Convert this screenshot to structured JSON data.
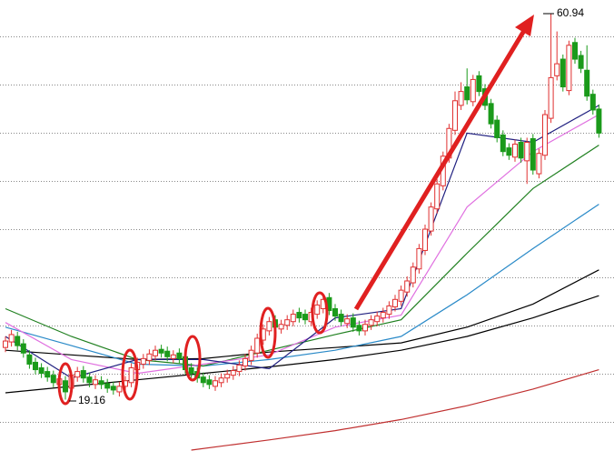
{
  "chart_data": {
    "type": "candlestick",
    "ylim": [
      13.6,
      62.4
    ],
    "up_color": "#e03030",
    "down_color": "#1a9a1a",
    "open": [
      24.8,
      25.4,
      26.0,
      25.2,
      24.0,
      23.2,
      22.6,
      22.2,
      21.8,
      20.8,
      21.2,
      20.4,
      21.6,
      22.3,
      21.6,
      20.8,
      21.2,
      20.9,
      20.6,
      20.0,
      20.6,
      21.0,
      22.4,
      23.0,
      23.4,
      23.9,
      24.6,
      24.4,
      23.6,
      24.2,
      23.8,
      22.6,
      22.2,
      21.6,
      21.3,
      20.6,
      21.0,
      21.5,
      21.8,
      22.2,
      22.8,
      23.4,
      24.2,
      25.6,
      26.6,
      27.8,
      26.8,
      27.2,
      27.6,
      28.6,
      28.4,
      27.6,
      28.4,
      29.0,
      30.2,
      29.0,
      28.4,
      27.4,
      28.0,
      27.2,
      26.6,
      27.2,
      27.6,
      28.0,
      28.4,
      29.2,
      29.8,
      30.8,
      31.8,
      33.3,
      35.3,
      37.4,
      39.8,
      42.3,
      45.3,
      48.3,
      51.0,
      53.0,
      51.4,
      54.2,
      52.8,
      51.2,
      49.4,
      47.8,
      46.4,
      45.4,
      47.0,
      45.0,
      47.4,
      43.6,
      45.6,
      49.6,
      54.2,
      56.0,
      52.6,
      57.8,
      56.4,
      54.8,
      52.2,
      50.6
    ],
    "close": [
      25.5,
      26.2,
      25.0,
      24.2,
      23.0,
      22.4,
      22.0,
      21.6,
      21.0,
      21.4,
      20.0,
      21.8,
      22.2,
      21.5,
      21.0,
      21.3,
      20.8,
      20.4,
      20.2,
      20.6,
      21.2,
      22.6,
      23.2,
      23.6,
      24.1,
      24.5,
      24.2,
      23.8,
      24.0,
      23.6,
      22.4,
      22.0,
      21.5,
      21.0,
      20.8,
      21.2,
      21.5,
      21.9,
      22.3,
      22.9,
      23.6,
      24.5,
      25.8,
      26.8,
      27.6,
      27.0,
      27.3,
      27.8,
      28.4,
      28.0,
      27.8,
      28.6,
      29.4,
      30.0,
      28.8,
      28.2,
      27.6,
      27.9,
      27.0,
      26.6,
      27.3,
      27.8,
      28.2,
      28.6,
      29.3,
      30.0,
      31.0,
      32.0,
      33.5,
      35.5,
      37.6,
      40.0,
      42.5,
      45.5,
      48.5,
      51.5,
      52.5,
      51.6,
      53.8,
      52.5,
      51.0,
      49.0,
      47.5,
      46.0,
      45.6,
      46.8,
      45.3,
      47.0,
      44.0,
      45.8,
      50.0,
      54.0,
      55.5,
      53.0,
      57.5,
      56.0,
      55.0,
      52.0,
      50.5,
      48.0
    ],
    "high": [
      26.0,
      26.7,
      26.5,
      25.7,
      24.5,
      23.7,
      23.1,
      22.7,
      22.3,
      21.9,
      21.7,
      22.3,
      22.7,
      22.8,
      22.1,
      21.8,
      21.7,
      21.4,
      21.1,
      21.1,
      21.7,
      23.1,
      23.7,
      24.1,
      24.6,
      25.0,
      25.1,
      24.9,
      24.5,
      24.7,
      24.3,
      23.1,
      22.7,
      22.1,
      21.8,
      21.7,
      22.0,
      22.4,
      22.8,
      23.4,
      24.1,
      25.0,
      26.3,
      27.3,
      28.1,
      28.3,
      27.8,
      28.3,
      28.9,
      29.1,
      28.9,
      29.1,
      29.9,
      30.5,
      30.7,
      29.5,
      28.9,
      28.4,
      28.5,
      27.7,
      27.8,
      28.3,
      28.7,
      29.1,
      29.8,
      30.5,
      31.5,
      32.5,
      34.0,
      36.0,
      38.1,
      40.5,
      43.0,
      46.0,
      49.0,
      52.5,
      53.5,
      55.0,
      54.3,
      54.7,
      53.3,
      51.7,
      49.9,
      48.3,
      46.9,
      47.3,
      47.5,
      47.5,
      47.9,
      46.3,
      50.5,
      60.94,
      59.0,
      56.5,
      58.0,
      58.3,
      56.9,
      57.5,
      52.7,
      51.1
    ],
    "low": [
      24.3,
      24.9,
      24.5,
      23.7,
      22.5,
      21.9,
      21.5,
      21.1,
      20.5,
      20.3,
      19.16,
      19.9,
      21.1,
      21.0,
      20.5,
      20.3,
      20.3,
      19.9,
      19.7,
      19.5,
      20.1,
      20.5,
      21.9,
      22.5,
      22.9,
      23.4,
      23.7,
      23.3,
      23.1,
      23.1,
      21.9,
      21.5,
      21.0,
      20.5,
      20.3,
      20.1,
      20.5,
      21.0,
      21.3,
      21.7,
      22.3,
      22.9,
      23.7,
      25.1,
      26.1,
      26.5,
      26.3,
      26.7,
      27.1,
      27.5,
      27.3,
      27.1,
      27.9,
      28.5,
      28.3,
      27.7,
      27.1,
      26.9,
      26.5,
      26.1,
      26.1,
      26.7,
      27.1,
      27.5,
      27.9,
      28.7,
      29.3,
      30.3,
      31.3,
      32.8,
      34.8,
      36.9,
      39.3,
      41.8,
      44.8,
      47.8,
      50.5,
      51.1,
      50.9,
      52.0,
      50.5,
      48.5,
      47.0,
      45.5,
      45.1,
      44.9,
      44.8,
      42.5,
      43.5,
      43.1,
      45.1,
      49.1,
      53.7,
      52.5,
      52.1,
      55.5,
      54.5,
      51.5,
      50.0,
      47.5
    ],
    "lines": [
      {
        "color": "#000000",
        "x": [
          0,
          11,
          22,
          33,
          44,
          55,
          66,
          77,
          88,
          99
        ],
        "values": [
          19.9,
          20.6,
          21.3,
          22.0,
          22.7,
          23.5,
          24.5,
          26.0,
          28.0,
          30.4
        ]
      },
      {
        "color": "#000000",
        "x": [
          0,
          11,
          22,
          33,
          44,
          55,
          66,
          77,
          88,
          99
        ],
        "values": [
          24.5,
          24.0,
          23.5,
          23.6,
          24.3,
          24.8,
          25.3,
          27.0,
          29.5,
          33.2
        ]
      },
      {
        "color": "#c03030",
        "x": [
          31,
          44,
          55,
          66,
          77,
          88,
          99
        ],
        "values": [
          13.7,
          14.8,
          15.8,
          17.0,
          18.5,
          20.3,
          22.4
        ]
      },
      {
        "color": "#2a8ac8",
        "x": [
          0,
          11,
          22,
          33,
          44,
          55,
          66,
          77,
          88,
          99
        ],
        "values": [
          27.0,
          25.0,
          23.0,
          22.8,
          23.5,
          24.5,
          26.0,
          30.5,
          35.5,
          40.3
        ]
      },
      {
        "color": "#208020",
        "x": [
          0,
          11,
          22,
          33,
          44,
          55,
          66,
          77,
          88,
          99
        ],
        "values": [
          29.0,
          26.0,
          23.5,
          22.8,
          24.5,
          26.2,
          27.8,
          35.0,
          42.0,
          46.7
        ]
      },
      {
        "color": "#e070e0",
        "x": [
          0,
          11,
          22,
          33,
          44,
          55,
          66,
          77,
          88,
          99
        ],
        "values": [
          27.5,
          23.5,
          22.0,
          23.0,
          24.0,
          27.0,
          28.3,
          40.0,
          46.0,
          50.0
        ]
      },
      {
        "color": "#202080",
        "x": [
          0,
          11,
          22,
          33,
          44,
          55,
          66,
          77,
          88,
          99
        ],
        "values": [
          26.0,
          21.5,
          23.5,
          23.5,
          22.5,
          28.0,
          29.0,
          48.0,
          47.0,
          51.0
        ]
      }
    ]
  }
}
